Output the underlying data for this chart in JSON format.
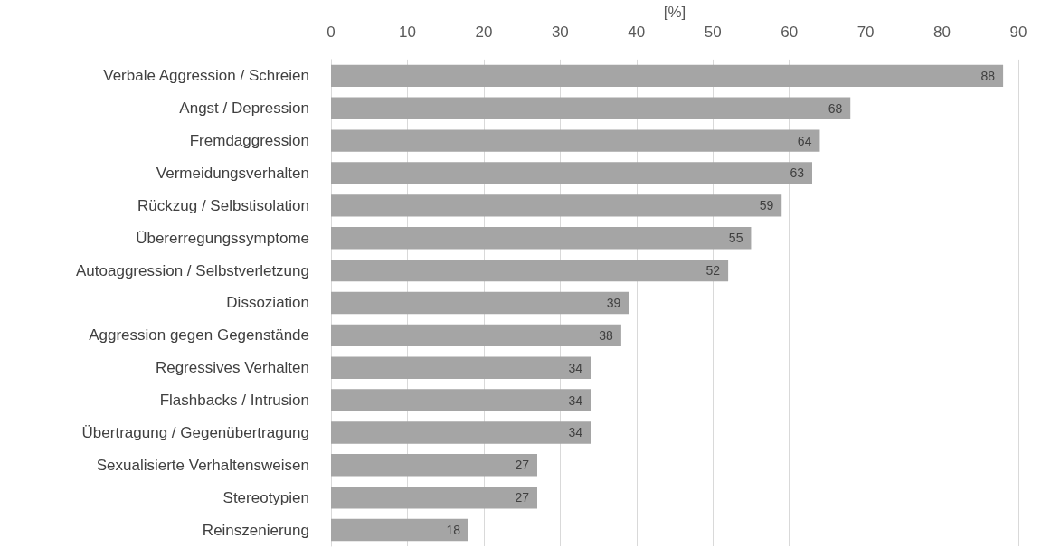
{
  "chart_data": {
    "type": "bar",
    "orientation": "horizontal",
    "xlabel": "[%]",
    "categories": [
      "Verbale Aggression / Schreien",
      "Angst / Depression",
      "Fremdaggression",
      "Vermeidungsverhalten",
      "Rückzug / Selbstisolation",
      "Übererregungssymptome",
      "Autoaggression / Selbstverletzung",
      "Dissoziation",
      "Aggression gegen Gegenstände",
      "Regressives Verhalten",
      "Flashbacks / Intrusion",
      "Übertragung / Gegenübertragung",
      "Sexualisierte Verhaltensweisen",
      "Stereotypien",
      "Reinszenierung"
    ],
    "values": [
      88,
      68,
      64,
      63,
      59,
      55,
      52,
      39,
      38,
      34,
      34,
      34,
      27,
      27,
      18
    ],
    "color": "#a5a5a5",
    "xlim": [
      0,
      90
    ],
    "xticks": [
      0,
      10,
      20,
      30,
      40,
      50,
      60,
      70,
      80,
      90
    ],
    "grid": "x",
    "data_labels": true
  }
}
